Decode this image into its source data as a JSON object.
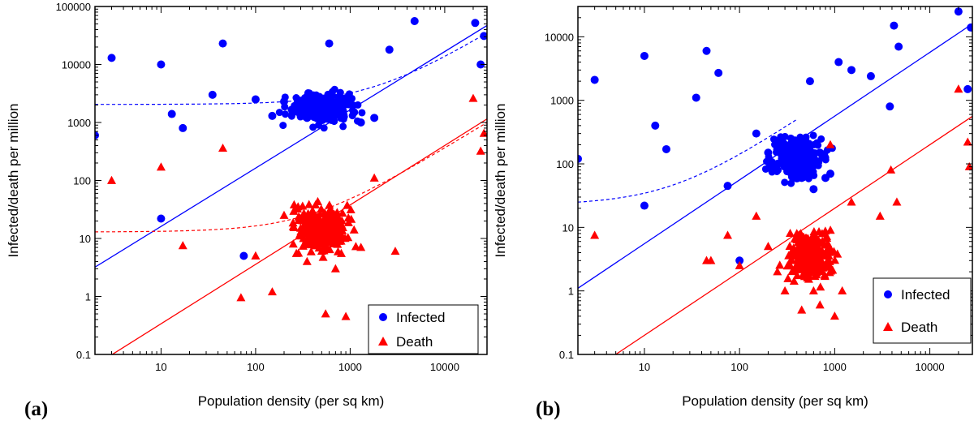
{
  "chart_data": [
    {
      "panel_label": "(a)",
      "type": "scatter",
      "xlabel": "Population density (per sq km)",
      "ylabel": "Infected/death per million",
      "xscale": "log",
      "yscale": "log",
      "xlim": [
        2,
        28000
      ],
      "ylim": [
        0.1,
        100000
      ],
      "xticks": [
        "10",
        "100",
        "1000",
        "10000"
      ],
      "yticks": [
        "0.1",
        "1",
        "10",
        "100",
        "1000",
        "10000",
        "100000"
      ],
      "legend": {
        "placement": "bottom-right",
        "entries": [
          "Infected",
          "Death"
        ]
      },
      "series": [
        {
          "name": "Infected",
          "marker": "circle",
          "color": "#0000ff",
          "points": [
            [
              2,
              600
            ],
            [
              3,
              13000
            ],
            [
              10,
              10000
            ],
            [
              10,
              22
            ],
            [
              13,
              1400
            ],
            [
              17,
              800
            ],
            [
              35,
              3000
            ],
            [
              45,
              23000
            ],
            [
              75,
              5
            ],
            [
              100,
              2500
            ],
            [
              150,
              1300
            ],
            [
              200,
              2300
            ],
            [
              250,
              1500
            ],
            [
              300,
              1800
            ],
            [
              350,
              1200
            ],
            [
              400,
              2000
            ],
            [
              450,
              1600
            ],
            [
              500,
              1100
            ],
            [
              550,
              2600
            ],
            [
              600,
              23000
            ],
            [
              650,
              1400
            ],
            [
              700,
              1900
            ],
            [
              800,
              1200
            ],
            [
              900,
              2200
            ],
            [
              1100,
              1500
            ],
            [
              1300,
              1000
            ],
            [
              1800,
              1200
            ],
            [
              2600,
              18000
            ],
            [
              4800,
              56000
            ],
            [
              21000,
              52000
            ],
            [
              24000,
              10000
            ],
            [
              26000,
              31000
            ]
          ],
          "trend_solid": {
            "from": [
              2,
              3.2
            ],
            "to": [
              28000,
              47000
            ]
          },
          "trend_dashed": {
            "from": [
              2,
              2050
            ],
            "to": [
              28000,
              35000
            ]
          }
        },
        {
          "name": "Death",
          "marker": "triangle",
          "color": "#ff0000",
          "points": [
            [
              3,
              100
            ],
            [
              10,
              170
            ],
            [
              17,
              7.5
            ],
            [
              45,
              360
            ],
            [
              70,
              0.95
            ],
            [
              100,
              5
            ],
            [
              150,
              1.2
            ],
            [
              200,
              25
            ],
            [
              250,
              8
            ],
            [
              300,
              15
            ],
            [
              350,
              4
            ],
            [
              400,
              30
            ],
            [
              450,
              10
            ],
            [
              500,
              6
            ],
            [
              550,
              0.5
            ],
            [
              600,
              20
            ],
            [
              650,
              12
            ],
            [
              700,
              3
            ],
            [
              800,
              9
            ],
            [
              900,
              0.45
            ],
            [
              1100,
              14
            ],
            [
              1300,
              7
            ],
            [
              1800,
              110
            ],
            [
              3000,
              6
            ],
            [
              20000,
              2600
            ],
            [
              24000,
              320
            ],
            [
              26000,
              650
            ]
          ],
          "trend_solid": {
            "from": [
              2,
              0.065
            ],
            "to": [
              28000,
              1150
            ]
          },
          "trend_dashed": {
            "from": [
              2,
              13
            ],
            "to": [
              28000,
              1000
            ]
          }
        }
      ]
    },
    {
      "panel_label": "(b)",
      "type": "scatter",
      "xlabel": "Population density (per sq km)",
      "ylabel": "Infected/death per million",
      "xscale": "log",
      "yscale": "log",
      "xlim": [
        2,
        28000
      ],
      "ylim": [
        0.1,
        30000
      ],
      "xticks": [
        "10",
        "100",
        "1000",
        "10000"
      ],
      "yticks": [
        "0.1",
        "1",
        "10",
        "100",
        "1000",
        "10000"
      ],
      "legend": {
        "placement": "bottom-right",
        "entries": [
          "Infected",
          "Death"
        ]
      },
      "series": [
        {
          "name": "Infected",
          "marker": "circle",
          "color": "#0000ff",
          "points": [
            [
              2,
              120
            ],
            [
              3,
              2100
            ],
            [
              10,
              5000
            ],
            [
              10,
              22
            ],
            [
              13,
              400
            ],
            [
              17,
              170
            ],
            [
              35,
              1100
            ],
            [
              45,
              6000
            ],
            [
              60,
              2700
            ],
            [
              75,
              45
            ],
            [
              100,
              3
            ],
            [
              150,
              300
            ],
            [
              200,
              150
            ],
            [
              250,
              100
            ],
            [
              300,
              200
            ],
            [
              350,
              80
            ],
            [
              400,
              120
            ],
            [
              450,
              60
            ],
            [
              500,
              90
            ],
            [
              550,
              2000
            ],
            [
              600,
              40
            ],
            [
              700,
              150
            ],
            [
              800,
              60
            ],
            [
              900,
              70
            ],
            [
              1100,
              4000
            ],
            [
              1500,
              3000
            ],
            [
              2400,
              2400
            ],
            [
              3800,
              800
            ],
            [
              4200,
              15000
            ],
            [
              4700,
              7000
            ],
            [
              20000,
              25000
            ],
            [
              25000,
              1500
            ],
            [
              27000,
              14000
            ]
          ],
          "trend_solid": {
            "from": [
              2,
              1.1
            ],
            "to": [
              28000,
              16000
            ]
          },
          "trend_dashed": {
            "from": [
              2,
              25
            ],
            "to": [
              400,
              500
            ]
          }
        },
        {
          "name": "Death",
          "marker": "triangle",
          "color": "#ff0000",
          "points": [
            [
              3,
              7.5
            ],
            [
              45,
              3
            ],
            [
              50,
              3
            ],
            [
              75,
              7.5
            ],
            [
              100,
              2.5
            ],
            [
              150,
              15
            ],
            [
              200,
              5
            ],
            [
              250,
              2
            ],
            [
              300,
              1
            ],
            [
              350,
              3
            ],
            [
              400,
              8
            ],
            [
              450,
              0.5
            ],
            [
              500,
              2
            ],
            [
              600,
              1
            ],
            [
              700,
              0.6
            ],
            [
              800,
              4
            ],
            [
              900,
              200
            ],
            [
              1000,
              0.4
            ],
            [
              1200,
              1
            ],
            [
              1500,
              25
            ],
            [
              3000,
              15
            ],
            [
              3900,
              80
            ],
            [
              4500,
              25
            ],
            [
              20000,
              1500
            ],
            [
              25000,
              220
            ],
            [
              26000,
              90
            ]
          ],
          "trend_solid": {
            "from": [
              2,
              0.04
            ],
            "to": [
              28000,
              560
            ]
          },
          "trend_dashed": null
        }
      ]
    }
  ],
  "colors": {
    "infected": "#0000ff",
    "death": "#ff0000",
    "axis": "#000000"
  }
}
